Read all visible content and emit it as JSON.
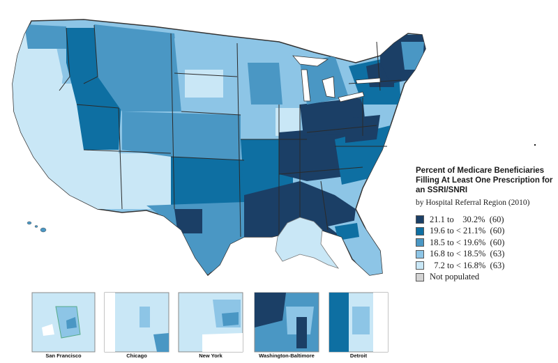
{
  "legend": {
    "title": "Percent of Medicare Beneficiaries Filling At Least One Prescription for an SSRI/SNRI",
    "subtitle": "by Hospital Referral Region (2010)",
    "items": [
      {
        "label": "21.1 to    30.2%  (60)",
        "color": "#1b3f66"
      },
      {
        "label": "19.6 to < 21.1%  (60)",
        "color": "#0e6fa2"
      },
      {
        "label": "18.5 to < 19.6%  (60)",
        "color": "#4a97c4"
      },
      {
        "label": "16.8 to < 18.5%  (63)",
        "color": "#8dc5e6"
      },
      {
        "label": "  7.2 to < 16.8%  (63)",
        "color": "#c9e7f6"
      },
      {
        "label": "Not populated",
        "color": "#d3d3d3"
      }
    ]
  },
  "insets": [
    {
      "label": "San Francisco"
    },
    {
      "label": "Chicago"
    },
    {
      "label": "New York"
    },
    {
      "label": "Washington-Baltimore"
    },
    {
      "label": "Detroit"
    }
  ]
}
